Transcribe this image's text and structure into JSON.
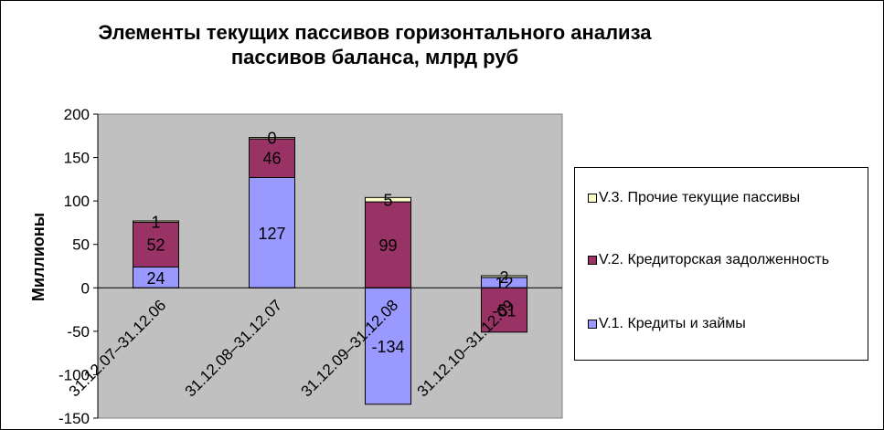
{
  "chart_data": {
    "type": "bar",
    "stacked": true,
    "title": "Элементы текущих пассивов горизонтального анализа пассивов баланса, млрд руб",
    "ylabel": "Миллионы",
    "xlabel": "",
    "ylim": [
      -150,
      200
    ],
    "yticks": [
      "200",
      "150",
      "100",
      "50",
      "0",
      "-50",
      "-100",
      "-150"
    ],
    "ytick_values": [
      200,
      150,
      100,
      50,
      0,
      -50,
      -100,
      -150
    ],
    "categories": [
      "31.12.07–31.12.06",
      "31.12.08–31.12.07",
      "31.12.09–31.12.08",
      "31.12.10–31.12.09"
    ],
    "series": [
      {
        "name": "V.1. Кредиты и займы",
        "values": [
          24,
          127,
          -134,
          12
        ],
        "labels": [
          "24",
          "127",
          "-134",
          "12"
        ],
        "color": "#9999ff"
      },
      {
        "name": "V.2. Кредиторская задолженность",
        "values": [
          52,
          46,
          99,
          -51
        ],
        "labels": [
          "52",
          "46",
          "99",
          "-51"
        ],
        "color": "#993366"
      },
      {
        "name": "V.3. Прочие текущие пассивы",
        "values": [
          1,
          0,
          5,
          2
        ],
        "labels": [
          "1",
          "0",
          "5",
          "2"
        ],
        "color": "#ffffcc"
      }
    ],
    "grid": false,
    "plot_background": "#c0c0c0",
    "legend_position": "right"
  }
}
